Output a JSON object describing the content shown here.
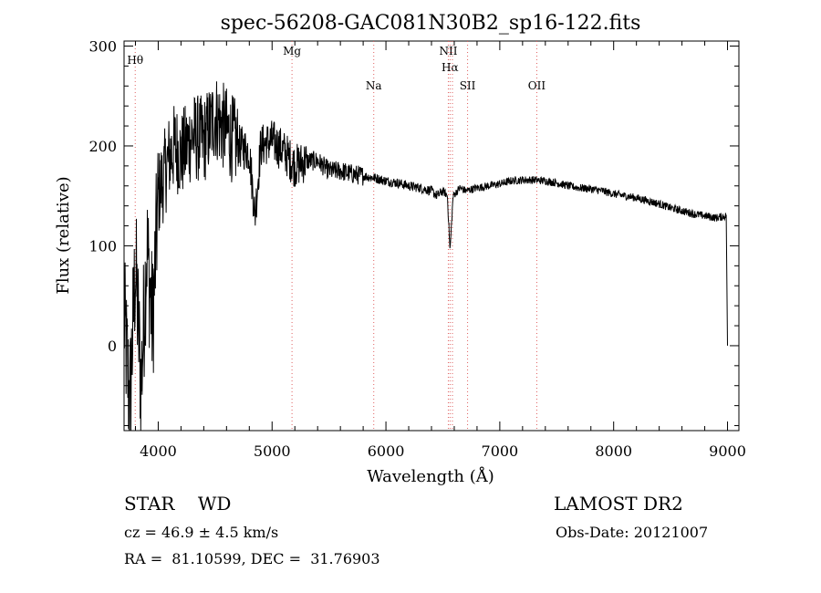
{
  "chart_data": {
    "type": "line",
    "title": "spec-56208-GAC081N30B2_sp16-122.fits",
    "xlabel": "Wavelength (Å)",
    "ylabel": "Flux (relative)",
    "xlim": [
      3700,
      9100
    ],
    "ylim": [
      -85,
      305
    ],
    "xticks": [
      4000,
      5000,
      6000,
      7000,
      8000,
      9000
    ],
    "yticks": [
      0,
      100,
      200,
      300
    ],
    "grid": false,
    "series": [
      {
        "name": "flux",
        "color": "#000000",
        "note": "noisy continuum; y values estimated from axes (key points)",
        "x": [
          3700,
          3750,
          3800,
          3850,
          3900,
          3950,
          4000,
          4050,
          4100,
          4150,
          4200,
          4300,
          4400,
          4500,
          4600,
          4700,
          4800,
          4850,
          4900,
          5000,
          5100,
          5200,
          5300,
          5400,
          5500,
          5600,
          5700,
          5800,
          5900,
          6000,
          6100,
          6200,
          6300,
          6400,
          6450,
          6500,
          6540,
          6563,
          6590,
          6650,
          6700,
          6800,
          6900,
          7000,
          7100,
          7200,
          7300,
          7400,
          7500,
          7600,
          7700,
          7800,
          7900,
          8000,
          8100,
          8200,
          8300,
          8400,
          8500,
          8600,
          8700,
          8800,
          8900,
          8990,
          9000
        ],
        "y": [
          30,
          -60,
          80,
          -40,
          100,
          20,
          150,
          170,
          190,
          200,
          190,
          210,
          205,
          230,
          215,
          200,
          195,
          130,
          200,
          205,
          195,
          180,
          185,
          185,
          175,
          175,
          172,
          170,
          168,
          165,
          163,
          160,
          158,
          155,
          150,
          155,
          150,
          95,
          150,
          158,
          155,
          158,
          160,
          162,
          165,
          166,
          166,
          165,
          163,
          160,
          158,
          157,
          155,
          152,
          150,
          148,
          145,
          142,
          138,
          135,
          132,
          130,
          128,
          130,
          0
        ]
      }
    ],
    "lines": [
      {
        "label": "Hθ",
        "x": 3798,
        "color": "#e06060"
      },
      {
        "label": "Mg",
        "x": 5175,
        "color": "#e06060"
      },
      {
        "label": "Na",
        "x": 5893,
        "color": "#e06060"
      },
      {
        "label": "NII",
        "x": 6548,
        "color": "#e06060"
      },
      {
        "label": "Hα",
        "x": 6563,
        "color": "#e06060"
      },
      {
        "label": "NII",
        "x": 6584,
        "color": "#e06060"
      },
      {
        "label": "SII",
        "x": 6717,
        "color": "#e06060"
      },
      {
        "label": "OII",
        "x": 7325,
        "color": "#e06060"
      }
    ]
  },
  "footer": {
    "object_type": "STAR    WD",
    "survey": "LAMOST DR2",
    "cz": "cz = 46.9 ± 4.5 km/s",
    "obs_date": "Obs-Date: 20121007",
    "ra_dec": "RA =  81.10599, DEC =  31.76903"
  }
}
